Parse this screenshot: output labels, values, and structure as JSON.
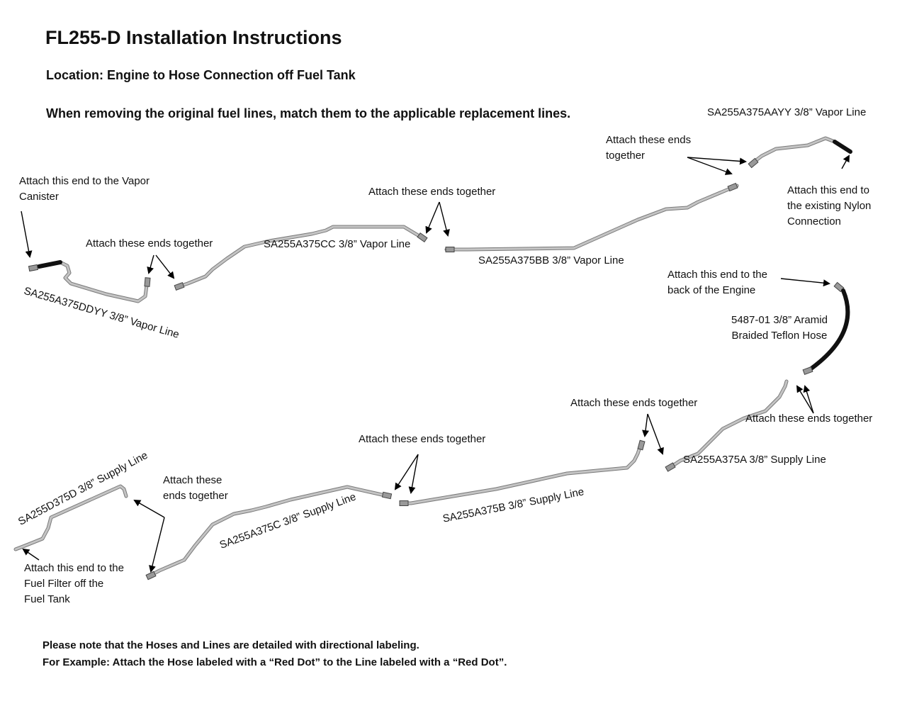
{
  "header": {
    "title": "FL255-D Installation Instructions",
    "location": "Location: Engine to Hose Connection off Fuel Tank",
    "instruction": "When removing the original fuel lines, match them to the applicable replacement lines."
  },
  "parts": {
    "ddyy": "SA255A375DDYY 3/8” Vapor Line",
    "cc": "SA255A375CC 3/8” Vapor Line",
    "bb": "SA255A375BB 3/8” Vapor Line",
    "aayy": "SA255A375AAYY 3/8” Vapor Line",
    "hose": "5487-01 3/8” Aramid\nBraided Teflon Hose",
    "a": "SA255A375A 3/8” Supply Line",
    "b": "SA255A375B 3/8” Supply Line",
    "c": "SA255A375C 3/8” Supply Line",
    "d": "SA255D375D 3/8” Supply Line"
  },
  "callouts": {
    "vapor_canister": "Attach this end to the Vapor\nCanister",
    "join_1": "Attach these ends together",
    "join_2": "Attach these ends together",
    "join_3": "Attach these ends\ntogether",
    "nylon": "Attach this end to\nthe existing Nylon\nConnection",
    "engine": "Attach this end to the\nback of the Engine",
    "join_hose": "Attach these ends together",
    "join_a_b": "Attach these ends together",
    "join_b_c": "Attach these ends together",
    "join_c_d": "Attach these\nends together",
    "fuel_filter": "Attach this end to the\nFuel Filter off the\nFuel Tank"
  },
  "footer": {
    "note1": "Please note that the Hoses and Lines are detailed with directional labeling.",
    "note2": "For Example: Attach the Hose labeled with a “Red Dot” to the Line labeled with a “Red Dot”."
  },
  "colors": {
    "tube": "#c4c4c4",
    "tube_edge": "#7a7a7a",
    "hose": "#111111"
  }
}
